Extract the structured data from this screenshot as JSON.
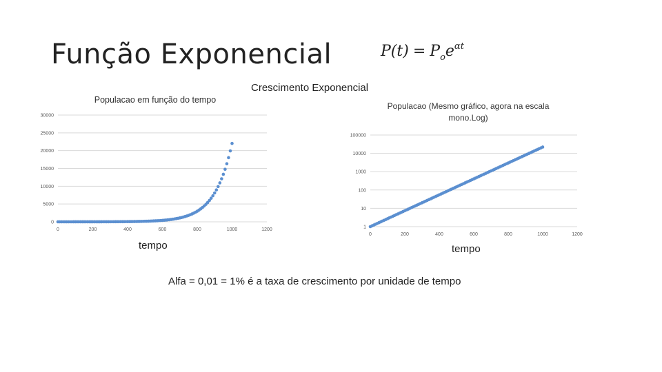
{
  "slide": {
    "title": "Função Exponencial",
    "formula": {
      "lhs": "P(t)",
      "equals": "=",
      "base": "P",
      "base_sub": "o",
      "exp_base": "e",
      "exp_power": "αt"
    },
    "center_title": "Crescimento Exponencial",
    "footer": "Alfa = 0,01 = 1% é a taxa de crescimento por unidade de tempo"
  },
  "colors": {
    "marker": "#5b8fd0",
    "grid": "#d9d9d9",
    "tick_text": "#595959"
  },
  "chart_data": [
    {
      "type": "scatter",
      "title": "Populacao em função do tempo",
      "xlabel": "tempo",
      "ylabel": "",
      "xlim": [
        0,
        1200
      ],
      "ylim": [
        0,
        30000
      ],
      "xticks": [
        "0",
        "200",
        "400",
        "600",
        "800",
        "1000",
        "1200"
      ],
      "yticks": [
        "0",
        "5000",
        "10000",
        "15000",
        "20000",
        "25000",
        "30000"
      ],
      "grid": true,
      "series": [
        {
          "function": "P(t) = P0·e^(αt)",
          "P0": 1,
          "alpha": 0.01,
          "x_start": 0,
          "x_end": 1000,
          "x_step": 10
        }
      ]
    },
    {
      "type": "scatter",
      "title": "Populacao  (Mesmo gráfico, agora na escala mono.Log)",
      "xlabel": "tempo",
      "ylabel": "",
      "xlim": [
        0,
        1200
      ],
      "ylim": [
        1,
        100000
      ],
      "yscale": "log",
      "xticks": [
        "0",
        "200",
        "400",
        "600",
        "800",
        "1000",
        "1200"
      ],
      "yticks": [
        "1",
        "10",
        "100",
        "1000",
        "10000",
        "100000"
      ],
      "grid": true,
      "series": [
        {
          "function": "P(t) = P0·e^(αt)",
          "P0": 1,
          "alpha": 0.01,
          "x_start": 0,
          "x_end": 1000,
          "x_step": 10
        }
      ]
    }
  ]
}
